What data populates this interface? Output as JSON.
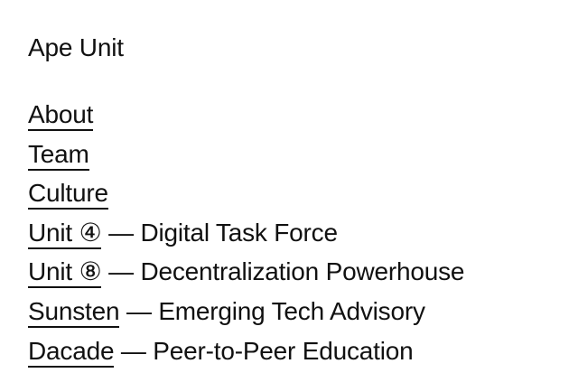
{
  "site": {
    "title": "Ape Unit"
  },
  "nav": {
    "items": [
      {
        "link": "About",
        "desc": ""
      },
      {
        "link": "Team",
        "desc": ""
      },
      {
        "link": "Culture",
        "desc": ""
      },
      {
        "link": "Unit ④",
        "desc": " — Digital Task Force"
      },
      {
        "link": "Unit ⑧",
        "desc": " — Decentralization Powerhouse"
      },
      {
        "link": "Sunsten",
        "desc": " — Emerging Tech Advisory"
      },
      {
        "link": "Dacade",
        "desc": " — Peer-to-Peer Education"
      }
    ]
  }
}
